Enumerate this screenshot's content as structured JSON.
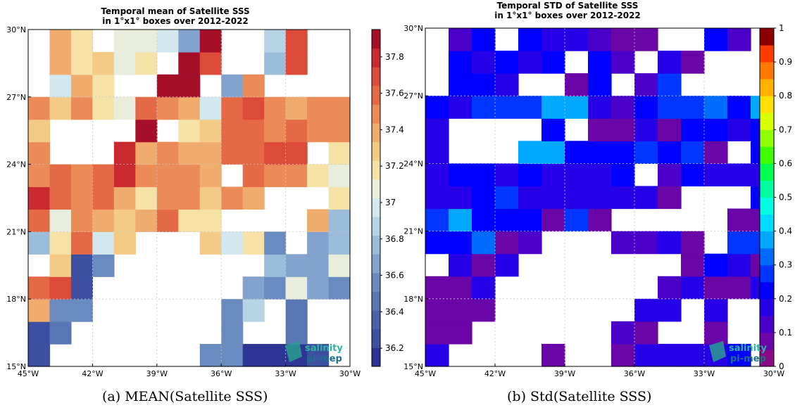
{
  "chart_data": [
    {
      "type": "heatmap",
      "title_lines": [
        "Temporal mean of Satellite SSS",
        "in 1°x1° boxes over 2012-2022"
      ],
      "caption": "(a) MEAN(Satellite SSS)",
      "x_ticks": [
        "45°W",
        "42°W",
        "39°W",
        "36°W",
        "33°W",
        "30°W"
      ],
      "y_ticks": [
        "15°N",
        "18°N",
        "21°N",
        "24°N",
        "27°N",
        "30°N"
      ],
      "xlim": [
        -45,
        -30
      ],
      "ylim": [
        15,
        30
      ],
      "colorbar": {
        "min": 36.1,
        "max": 37.95,
        "ticks": [
          36.2,
          36.4,
          36.6,
          36.8,
          37,
          37.2,
          37.4,
          37.6,
          37.8
        ],
        "tick_labels": [
          "36.2",
          "36.4",
          "36.6",
          "36.8",
          "37",
          "37.2",
          "37.4",
          "37.6",
          "37.8"
        ],
        "bins": 18,
        "colors": [
          "#2c3494",
          "#3d4fa0",
          "#4a62aa",
          "#5876b4",
          "#6a8bc0",
          "#82a3cd",
          "#9bbdda",
          "#b7d4e6",
          "#d2e8ee",
          "#e8eedb",
          "#f6e2a6",
          "#f3cb86",
          "#f0ac6d",
          "#eb8b57",
          "#e46a46",
          "#dc4a39",
          "#c92a30",
          "#a50f28"
        ]
      },
      "cell_values": [
        [
          36.3,
          null,
          null,
          null,
          null,
          null,
          null,
          null,
          36.6,
          36.6,
          36.2,
          36.2,
          36.2,
          36.3,
          null
        ],
        [
          36.3,
          36.5,
          null,
          null,
          null,
          null,
          null,
          null,
          null,
          36.6,
          null,
          null,
          36.5,
          null,
          null
        ],
        [
          37.4,
          36.6,
          36.6,
          null,
          null,
          null,
          null,
          null,
          null,
          36.6,
          36.9,
          null,
          36.5,
          null,
          null
        ],
        [
          37.6,
          37.7,
          36.3,
          null,
          null,
          null,
          null,
          null,
          null,
          null,
          36.7,
          36.6,
          37.05,
          36.7,
          36.6
        ],
        [
          null,
          37.3,
          36.3,
          36.6,
          null,
          null,
          null,
          null,
          null,
          null,
          null,
          36.8,
          36.7,
          36.7,
          37.1
        ],
        [
          36.8,
          37.15,
          37.6,
          36.95,
          37.3,
          null,
          null,
          null,
          37.3,
          36.95,
          37.15,
          36.6,
          null,
          36.65,
          36.75
        ],
        [
          37.55,
          37.1,
          37.5,
          37.4,
          37.3,
          37.4,
          37.55,
          37.15,
          37.15,
          null,
          null,
          null,
          null,
          37.4,
          36.8
        ],
        [
          37.8,
          37.55,
          37.5,
          37.6,
          37.35,
          37.2,
          37.45,
          37.45,
          37.25,
          37.5,
          37.4,
          null,
          null,
          null,
          37.2
        ],
        [
          37.45,
          37.55,
          37.45,
          37.55,
          37.8,
          37.45,
          37.45,
          37.45,
          37.35,
          null,
          37.55,
          37.45,
          37.45,
          37.2,
          37.05
        ],
        [
          37.45,
          null,
          null,
          null,
          37.75,
          37.35,
          37.45,
          37.35,
          37.35,
          37.55,
          37.55,
          37.7,
          37.7,
          null,
          37.15
        ],
        [
          37.25,
          null,
          null,
          null,
          null,
          37.85,
          null,
          37.15,
          37.25,
          37.55,
          37.55,
          37.45,
          37.55,
          37.45,
          37.45
        ],
        [
          37.45,
          37.25,
          37.5,
          37.15,
          37.05,
          37.6,
          37.45,
          37.35,
          36.95,
          37.55,
          37.65,
          37.45,
          37.35,
          37.45,
          37.45
        ],
        [
          null,
          36.95,
          37.35,
          37.15,
          null,
          null,
          37.85,
          37.85,
          null,
          36.7,
          37.45,
          null,
          null,
          null,
          null
        ],
        [
          null,
          37.35,
          37.15,
          37.25,
          37.05,
          37.15,
          null,
          37.85,
          37.7,
          null,
          null,
          36.8,
          37.7,
          null,
          null
        ],
        [
          null,
          37.35,
          37.15,
          null,
          37.05,
          37.05,
          36.95,
          36.7,
          37.85,
          null,
          null,
          36.85,
          37.7,
          null,
          null
        ]
      ],
      "logo": {
        "line1": "salinity",
        "line2": "pi-mep"
      }
    },
    {
      "type": "heatmap",
      "title_lines": [
        "Temporal STD of Satellite SSS",
        "in 1°x1° boxes over 2012-2022"
      ],
      "caption": "(b) Std(Satellite SSS)",
      "x_ticks": [
        "45°W",
        "42°W",
        "39°W",
        "36°W",
        "33°W",
        "30°W"
      ],
      "y_ticks": [
        "15°N",
        "18°N",
        "21°N",
        "24°N",
        "27°N",
        "30°N"
      ],
      "xlim": [
        -45,
        -30
      ],
      "ylim": [
        15,
        30
      ],
      "colorbar": {
        "min": 0,
        "max": 1,
        "ticks": [
          0,
          0.1,
          0.2,
          0.3,
          0.4,
          0.5,
          0.6,
          0.7,
          0.8,
          0.9,
          1
        ],
        "tick_labels": [
          "0",
          "0.1",
          "0.2",
          "0.3",
          "0.4",
          "0.5",
          "0.6",
          "0.7",
          "0.8",
          "0.9",
          "1"
        ],
        "bins": 20,
        "colors": [
          "#8b0a8a",
          "#6a05a8",
          "#4a00c8",
          "#2600e6",
          "#0000ff",
          "#0036ff",
          "#006cff",
          "#00a8ff",
          "#00dcff",
          "#00ffe0",
          "#00ffa0",
          "#00ff50",
          "#40ff00",
          "#90ff00",
          "#d8ff00",
          "#ffe000",
          "#ffb000",
          "#ff7800",
          "#ff3c00",
          "#8b0000"
        ]
      },
      "cell_values": [
        [
          0.15,
          null,
          null,
          null,
          null,
          0.05,
          null,
          null,
          0.05,
          0.15,
          0.15,
          0.15,
          0.18,
          0.2,
          null
        ],
        [
          0.05,
          0.05,
          null,
          null,
          null,
          null,
          null,
          null,
          0.1,
          0.05,
          null,
          null,
          0.05,
          null,
          null
        ],
        [
          0.05,
          0.05,
          0.05,
          null,
          null,
          null,
          null,
          null,
          null,
          0.15,
          0.15,
          null,
          0.15,
          null,
          null
        ],
        [
          0.05,
          0.05,
          0.15,
          null,
          null,
          null,
          null,
          null,
          null,
          null,
          0.1,
          0.15,
          0.05,
          0.05,
          0.15
        ],
        [
          null,
          0.15,
          0.05,
          0.15,
          null,
          null,
          null,
          null,
          null,
          null,
          null,
          0.05,
          0.2,
          0.15,
          0.05
        ],
        [
          0.2,
          0.2,
          0.32,
          0.05,
          0.1,
          null,
          null,
          null,
          0.1,
          0.1,
          0.15,
          0.05,
          null,
          0.25,
          0.25
        ],
        [
          0.25,
          0.35,
          0.22,
          0.2,
          0.2,
          0.05,
          0.28,
          0.05,
          null,
          null,
          null,
          null,
          null,
          0.05,
          0.05
        ],
        [
          0.15,
          0.15,
          0.2,
          0.28,
          0.15,
          0.15,
          0.15,
          0.15,
          0.15,
          0.15,
          0.05,
          null,
          null,
          null,
          0.2
        ],
        [
          0.15,
          0.2,
          0.2,
          0.18,
          0.2,
          0.18,
          0.18,
          0.15,
          0.2,
          null,
          0.1,
          0.2,
          0.15,
          0.15,
          0.15
        ],
        [
          0.15,
          null,
          null,
          null,
          0.35,
          0.35,
          0.2,
          0.2,
          0.2,
          0.25,
          0.2,
          0.25,
          0.05,
          null,
          0.2
        ],
        [
          0.15,
          null,
          null,
          null,
          null,
          0.2,
          null,
          0.05,
          0.05,
          0.15,
          0.05,
          0.2,
          0.2,
          0.15,
          0.2
        ],
        [
          0.2,
          0.15,
          0.25,
          0.25,
          0.25,
          0.35,
          0.35,
          0.15,
          0.1,
          0.2,
          0.25,
          0.25,
          0.32,
          0.2,
          0.35
        ],
        [
          null,
          0.2,
          0.2,
          0.15,
          null,
          null,
          0.05,
          0.2,
          null,
          0.1,
          0.25,
          null,
          null,
          null,
          null
        ],
        [
          null,
          0.2,
          0.15,
          0.2,
          0.15,
          0.2,
          null,
          0.2,
          0.1,
          null,
          0.15,
          0.05,
          null,
          null,
          null
        ],
        [
          null,
          0.1,
          0.2,
          null,
          0.2,
          0.15,
          0.15,
          0.1,
          0.05,
          0.05,
          null,
          null,
          0.2,
          0.1,
          null
        ]
      ],
      "logo": {
        "line1": "salinity",
        "line2": "pi-mep"
      }
    }
  ]
}
